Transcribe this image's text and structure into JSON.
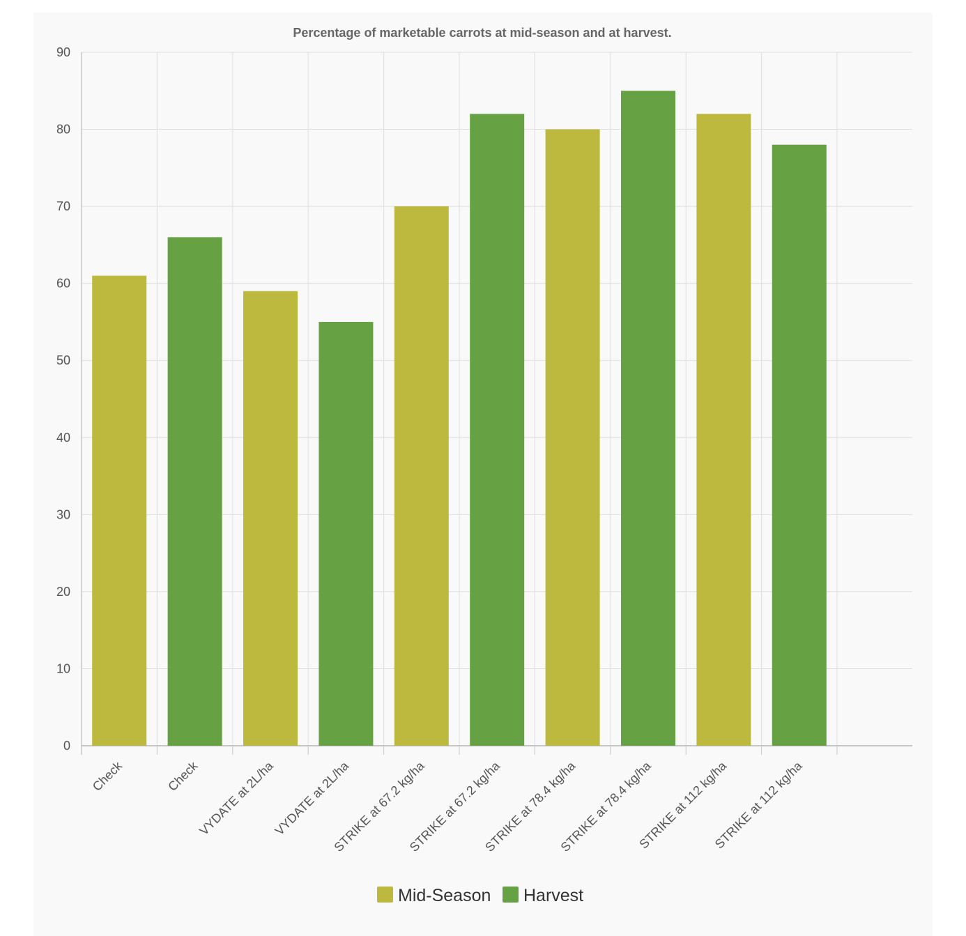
{
  "chart_data": {
    "type": "bar",
    "title": "Percentage of marketable carrots at mid-season and at harvest.",
    "xlabel": "",
    "ylabel": "",
    "ylim": [
      0,
      90
    ],
    "y_ticks": [
      "0",
      "10",
      "20",
      "30",
      "40",
      "50",
      "60",
      "70",
      "80",
      "90"
    ],
    "categories": [
      "Check",
      "Check",
      "VYDATE at 2L/ha",
      "VYDATE at 2L/ha",
      "STRIKE at 67.2 kg/ha",
      "STRIKE at 67.2 kg/ha",
      "STRIKE at 78.4 kg/ha",
      "STRIKE at 78.4 kg/ha",
      "STRIKE at 112 kg/ha",
      "STRIKE at 112 kg/ha"
    ],
    "values": [
      61,
      66,
      59,
      55,
      70,
      82,
      80,
      85,
      82,
      78
    ],
    "bar_series": [
      "Mid-Season",
      "Harvest",
      "Mid-Season",
      "Harvest",
      "Mid-Season",
      "Harvest",
      "Mid-Season",
      "Harvest",
      "Mid-Season",
      "Harvest"
    ],
    "series": [
      {
        "name": "Mid-Season",
        "color": "#bcb93e"
      },
      {
        "name": "Harvest",
        "color": "#66a244"
      }
    ],
    "grid": true,
    "legend_position": "bottom-center"
  }
}
